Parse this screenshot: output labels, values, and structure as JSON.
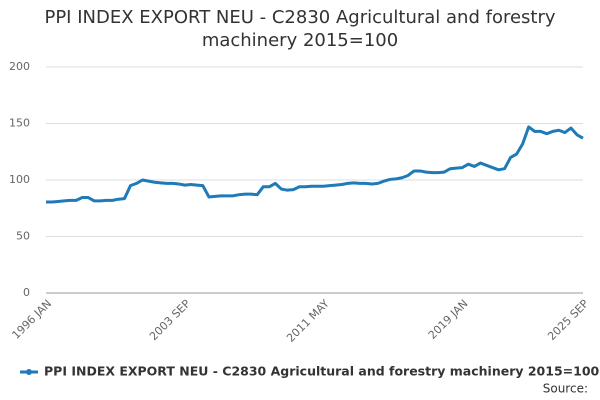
{
  "chart_data": {
    "type": "line",
    "title": "PPI INDEX EXPORT NEU - C2830 Agricultural and forestry machinery 2015=100",
    "source": "Source:",
    "categories": [
      "1996 JAN",
      null,
      null,
      null,
      null,
      null,
      null,
      null,
      null,
      null,
      null,
      null,
      null,
      null,
      null,
      null,
      null,
      null,
      null,
      null,
      null,
      null,
      null,
      "2003 SEP",
      null,
      null,
      null,
      null,
      null,
      null,
      null,
      null,
      null,
      null,
      null,
      null,
      null,
      null,
      null,
      null,
      null,
      null,
      null,
      null,
      null,
      null,
      "2011 MAY",
      null,
      null,
      null,
      null,
      null,
      null,
      null,
      null,
      null,
      null,
      null,
      null,
      null,
      null,
      null,
      null,
      null,
      null,
      null,
      null,
      null,
      null,
      "2019 JAN",
      null,
      null,
      null,
      null,
      null,
      null,
      null,
      null,
      null,
      null,
      null,
      null,
      null,
      null,
      null,
      null,
      null,
      null,
      null,
      "2025 SEP"
    ],
    "series": [
      {
        "name": "PPI INDEX EXPORT NEU - C2830 Agricultural and forestry machinery 2015=100",
        "color": "#1f7ab8",
        "values": [
          80.5,
          80.5,
          81,
          81.5,
          82,
          82,
          84.5,
          84.5,
          81.5,
          81.5,
          82,
          82,
          83,
          83.5,
          95,
          97,
          100,
          99,
          98,
          97.5,
          97,
          97,
          96.5,
          95.5,
          96,
          95.5,
          95,
          85,
          85.5,
          86,
          86,
          86,
          87,
          87.5,
          87.5,
          87,
          94,
          94,
          97,
          92,
          91,
          91.5,
          94,
          94,
          94.5,
          94.5,
          94.5,
          95,
          95.5,
          96,
          97,
          97.5,
          97,
          97,
          96.5,
          97,
          99,
          100.5,
          101,
          102,
          104,
          108,
          108,
          107,
          106.5,
          106.5,
          107,
          110,
          110.5,
          111,
          114,
          112,
          115,
          113,
          111,
          109,
          110,
          120,
          123,
          132,
          147,
          143,
          143,
          141,
          143,
          144,
          142,
          146,
          140,
          137
        ]
      }
    ],
    "ylim": [
      0,
      200
    ],
    "yticks": [
      0,
      50,
      100,
      150,
      200
    ],
    "grid": true,
    "legend": "bottom"
  }
}
